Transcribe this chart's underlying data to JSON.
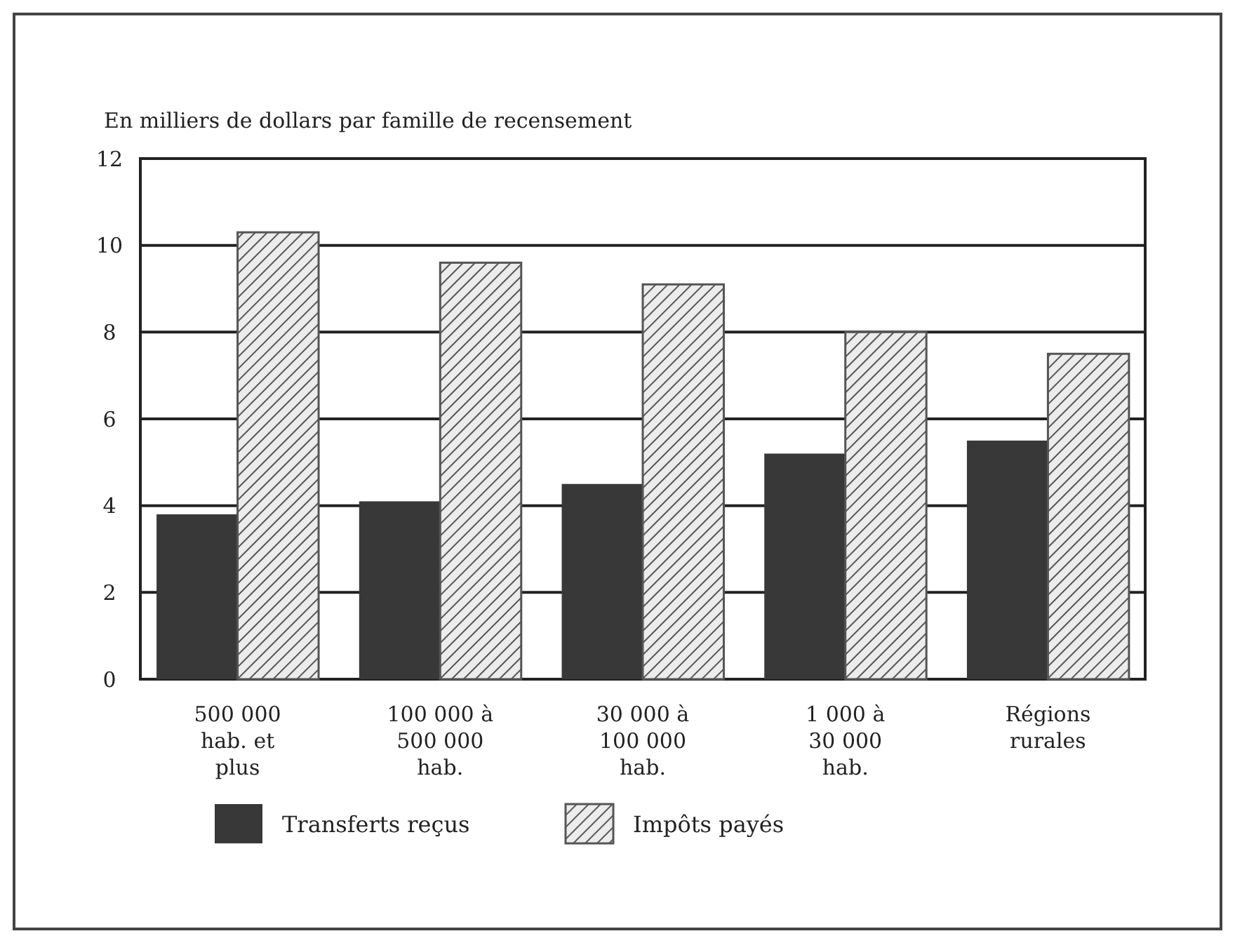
{
  "chart_data": {
    "type": "bar",
    "ylabel": "En milliers de dollars par famille de recensement",
    "categories": [
      "500 000\nhab. et\nplus",
      "100 000 à\n500 000\nhab.",
      "30 000 à\n100 000\nhab.",
      "1 000 à\n30 000\nhab.",
      "Régions\nrurales"
    ],
    "series": [
      {
        "name": "Transferts reçus",
        "color": "#383838",
        "values": [
          3.8,
          4.1,
          4.5,
          5.2,
          5.5
        ]
      },
      {
        "name": "Impôts payés",
        "color": "#555555",
        "values": [
          10.3,
          9.6,
          9.1,
          8.0,
          7.5
        ]
      }
    ],
    "ylim": [
      0,
      12
    ],
    "yticks": [
      0,
      2,
      4,
      6,
      8,
      10,
      12
    ],
    "grid": "y",
    "legend": "bottom"
  }
}
